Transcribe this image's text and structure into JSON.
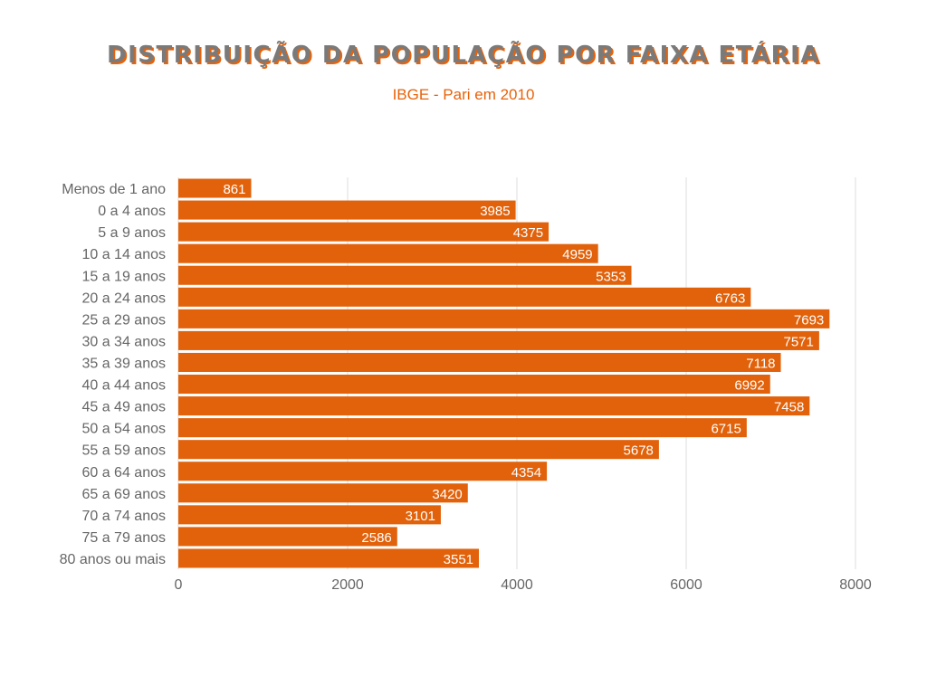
{
  "colors": {
    "bar": "#e1620b",
    "title_text": "#7a7a7a",
    "title_shadow": "#e7620a",
    "subtitle": "#e7620a",
    "grid": "#dddddd",
    "label": "#666666",
    "value_label": "#ffffff"
  },
  "chart_data": {
    "type": "bar",
    "orientation": "horizontal",
    "title": "DISTRIBUIÇÃO DA POPULAÇÃO POR FAIXA ETÁRIA",
    "subtitle": "IBGE - Pari em 2010",
    "categories": [
      "Menos de 1 ano",
      "0 a 4 anos",
      "5 a 9 anos",
      "10 a 14 anos",
      "15 a 19 anos",
      "20 a 24 anos",
      "25 a 29 anos",
      "30 a 34 anos",
      "35 a 39 anos",
      "40 a 44 anos",
      "45 a 49 anos",
      "50 a 54 anos",
      "55 a 59 anos",
      "60 a 64 anos",
      "65 a 69 anos",
      "70 a 74 anos",
      "75 a 79 anos",
      "80 anos ou mais"
    ],
    "values": [
      861,
      3985,
      4375,
      4959,
      5353,
      6763,
      7693,
      7571,
      7118,
      6992,
      7458,
      6715,
      5678,
      4354,
      3420,
      3101,
      2586,
      3551
    ],
    "xlim": [
      0,
      8000
    ],
    "xticks": [
      0,
      2000,
      4000,
      6000,
      8000
    ],
    "grid": true,
    "legend": "none",
    "data_labels": "inside-end"
  }
}
